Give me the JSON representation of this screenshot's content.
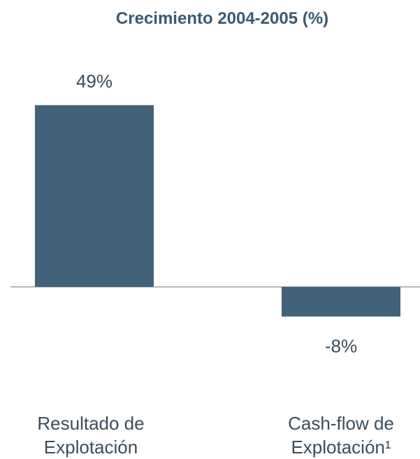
{
  "chart_data": {
    "type": "bar",
    "title": "Crecimiento 2004-2005 (%)",
    "categories": [
      "Resultado de Explotación",
      "Cash-flow de Explotación¹"
    ],
    "values": [
      49,
      -8
    ],
    "value_labels": [
      "49%",
      "-8%"
    ],
    "color": "#42627a"
  }
}
